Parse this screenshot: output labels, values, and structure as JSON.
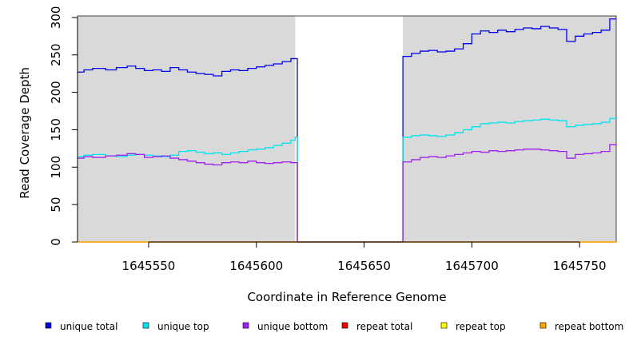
{
  "chart_data": {
    "type": "line",
    "title": "",
    "xlabel": "Coordinate in Reference Genome",
    "ylabel": "Read Coverage Depth",
    "xlim": [
      1645517,
      1645767
    ],
    "ylim": [
      0,
      302
    ],
    "xticks": [
      1645550,
      1645600,
      1645650,
      1645700,
      1645750
    ],
    "yticks": [
      0,
      50,
      100,
      150,
      200,
      250,
      300
    ],
    "shaded_regions": [
      {
        "x0": 1645517,
        "x1": 1645618,
        "color": "#d9d9d9"
      },
      {
        "x0": 1645668,
        "x1": 1645767,
        "color": "#d9d9d9"
      }
    ],
    "series": [
      {
        "name": "unique total",
        "color": "#0000ee",
        "x": [
          1645517,
          1645520,
          1645524,
          1645530,
          1645535,
          1645540,
          1645544,
          1645548,
          1645552,
          1645556,
          1645560,
          1645564,
          1645568,
          1645572,
          1645576,
          1645580,
          1645584,
          1645588,
          1645592,
          1645596,
          1645600,
          1645604,
          1645608,
          1645612,
          1645616,
          1645618,
          1645619,
          1645667,
          1645668,
          1645672,
          1645676,
          1645680,
          1645684,
          1645688,
          1645692,
          1645696,
          1645700,
          1645704,
          1645708,
          1645712,
          1645716,
          1645720,
          1645724,
          1645728,
          1645732,
          1645736,
          1645740,
          1645744,
          1645748,
          1645752,
          1645756,
          1645760,
          1645764,
          1645767
        ],
        "values": [
          227,
          230,
          232,
          230,
          233,
          235,
          232,
          229,
          230,
          228,
          233,
          230,
          227,
          225,
          224,
          222,
          228,
          230,
          229,
          232,
          234,
          236,
          238,
          241,
          245,
          245,
          0,
          0,
          248,
          252,
          255,
          256,
          254,
          255,
          258,
          265,
          278,
          282,
          280,
          283,
          281,
          284,
          286,
          285,
          288,
          286,
          284,
          268,
          275,
          278,
          280,
          283,
          298,
          298
        ]
      },
      {
        "name": "unique top",
        "color": "#00e5ee",
        "x": [
          1645517,
          1645520,
          1645524,
          1645530,
          1645535,
          1645540,
          1645544,
          1645548,
          1645552,
          1645556,
          1645560,
          1645564,
          1645568,
          1645572,
          1645576,
          1645580,
          1645584,
          1645588,
          1645592,
          1645596,
          1645600,
          1645604,
          1645608,
          1645612,
          1645616,
          1645618,
          1645619,
          1645667,
          1645668,
          1645672,
          1645676,
          1645680,
          1645684,
          1645688,
          1645692,
          1645696,
          1645700,
          1645704,
          1645708,
          1645712,
          1645716,
          1645720,
          1645724,
          1645728,
          1645732,
          1645736,
          1645740,
          1645744,
          1645748,
          1645752,
          1645756,
          1645760,
          1645764,
          1645767
        ],
        "values": [
          114,
          116,
          117,
          115,
          114,
          116,
          117,
          116,
          115,
          114,
          116,
          121,
          122,
          120,
          118,
          119,
          117,
          119,
          121,
          123,
          124,
          126,
          129,
          132,
          136,
          140,
          0,
          0,
          140,
          142,
          143,
          142,
          141,
          143,
          146,
          150,
          154,
          158,
          159,
          160,
          159,
          161,
          162,
          163,
          164,
          163,
          162,
          154,
          156,
          157,
          158,
          160,
          165,
          165
        ]
      },
      {
        "name": "unique bottom",
        "color": "#a020f0",
        "x": [
          1645517,
          1645520,
          1645524,
          1645530,
          1645535,
          1645540,
          1645544,
          1645548,
          1645552,
          1645556,
          1645560,
          1645564,
          1645568,
          1645572,
          1645576,
          1645580,
          1645584,
          1645588,
          1645592,
          1645596,
          1645600,
          1645604,
          1645608,
          1645612,
          1645616,
          1645618,
          1645619,
          1645667,
          1645668,
          1645672,
          1645676,
          1645680,
          1645684,
          1645688,
          1645692,
          1645696,
          1645700,
          1645704,
          1645708,
          1645712,
          1645716,
          1645720,
          1645724,
          1645728,
          1645732,
          1645736,
          1645740,
          1645744,
          1645748,
          1645752,
          1645756,
          1645760,
          1645764,
          1645767
        ],
        "values": [
          112,
          114,
          113,
          115,
          116,
          118,
          117,
          113,
          114,
          115,
          112,
          110,
          108,
          106,
          104,
          103,
          106,
          107,
          106,
          108,
          106,
          105,
          106,
          107,
          106,
          106,
          0,
          0,
          107,
          110,
          113,
          114,
          113,
          115,
          117,
          119,
          121,
          120,
          122,
          121,
          122,
          123,
          124,
          124,
          123,
          122,
          121,
          112,
          117,
          118,
          119,
          121,
          130,
          130
        ]
      },
      {
        "name": "repeat total",
        "color": "#ee0000",
        "x": [
          1645517,
          1645767
        ],
        "values": [
          0,
          0
        ]
      },
      {
        "name": "repeat top",
        "color": "#ffff00",
        "x": [
          1645517,
          1645767
        ],
        "values": [
          0,
          0
        ]
      },
      {
        "name": "repeat bottom",
        "color": "#ffa500",
        "x": [
          1645517,
          1645767
        ],
        "values": [
          0,
          0
        ]
      }
    ],
    "legend": "bottom"
  }
}
